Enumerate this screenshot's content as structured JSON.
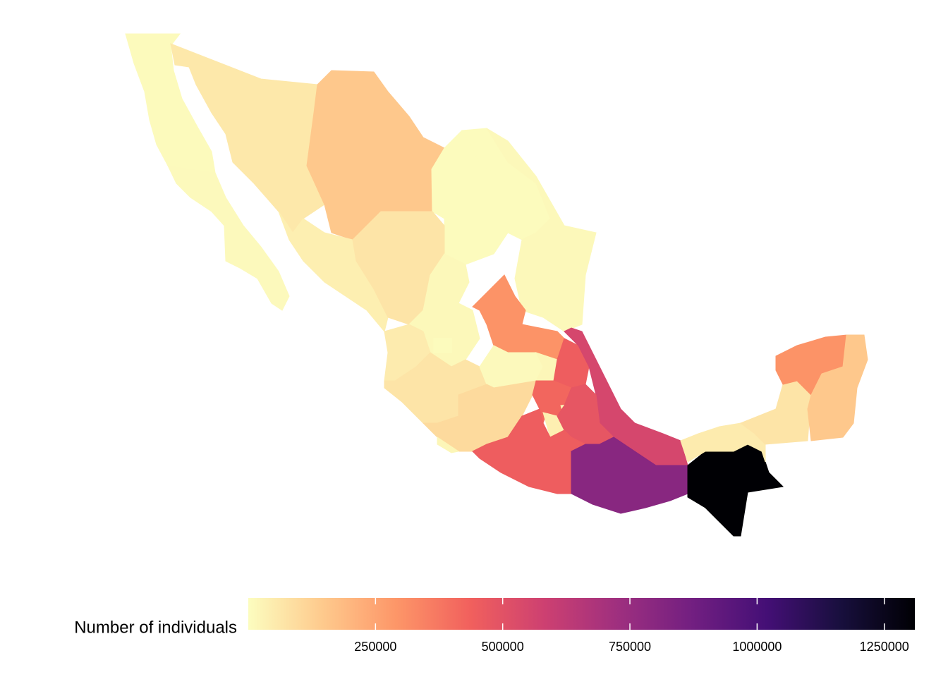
{
  "chart_data": {
    "type": "choropleth",
    "legend_title": "Number of individuals",
    "values": [
      8000,
      10000,
      60000,
      150000,
      5000,
      5000,
      15000,
      40000,
      70000,
      15000,
      300000,
      50000,
      70000,
      5000,
      10000,
      20000,
      450000,
      550000,
      100000,
      420000,
      30000,
      40000,
      480000,
      450000,
      800000,
      1310000,
      50000,
      70000,
      300000,
      150000,
      20000
    ],
    "colorscale": [
      "#fcfdbf",
      "#feca8d",
      "#fd9668",
      "#f1605d",
      "#cd4071",
      "#9e2f7f",
      "#721f81",
      "#440f76",
      "#180f3d",
      "#000004"
    ],
    "clim": [
      0,
      1310000
    ],
    "cticks": [
      250000,
      500000,
      750000,
      1000000,
      1250000
    ]
  }
}
